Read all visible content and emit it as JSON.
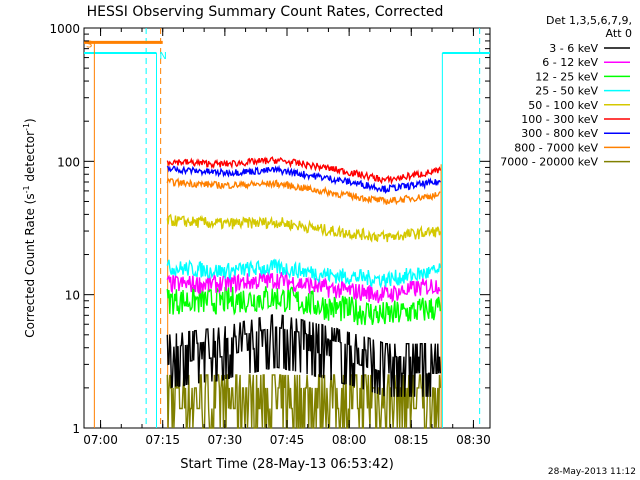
{
  "chart_data": {
    "type": "line",
    "title": "HESSI Observing Summary Count Rates, Corrected",
    "xlabel": "Start Time (28-May-13 06:53:42)",
    "ylabel_main": "Corrected Count Rate (s",
    "ylabel_sup1": "-1",
    "ylabel_mid": " detector",
    "ylabel_sup2": "-1",
    "ylabel_end": ")",
    "footer_date": "28-May-2013 11:12",
    "yscale": "log",
    "ylim": [
      1,
      1000
    ],
    "xlim_minutes": [
      -4,
      94
    ],
    "x_ticks": [
      {
        "label": "07:00",
        "minutes": 0
      },
      {
        "label": "07:15",
        "minutes": 15
      },
      {
        "label": "07:30",
        "minutes": 30
      },
      {
        "label": "07:45",
        "minutes": 45
      },
      {
        "label": "08:00",
        "minutes": 60
      },
      {
        "label": "08:15",
        "minutes": 75
      },
      {
        "label": "08:30",
        "minutes": 90
      }
    ],
    "y_ticks": [
      {
        "label": "1",
        "value": 1
      },
      {
        "label": "10",
        "value": 10
      },
      {
        "label": "100",
        "value": 100
      },
      {
        "label": "1000",
        "value": 1000
      }
    ],
    "legend_header": [
      "Det 1,3,5,6,7,9,",
      "Att 0"
    ],
    "legend_position": "right",
    "series": [
      {
        "name": "3 - 6 keV",
        "color": "#000000",
        "start": [
          3.5,
          4.0,
          5.0,
          4.0,
          3.0,
          3.0
        ],
        "end": [
          3.0,
          3.5,
          3.0,
          2.5,
          3.0,
          3.5
        ],
        "noise": 0.25
      },
      {
        "name": "6 - 12 keV",
        "color": "#ff00ff",
        "start": [
          12,
          12,
          13,
          11,
          10,
          12
        ],
        "end": [
          11,
          12,
          13,
          11,
          10,
          12
        ],
        "noise": 0.08
      },
      {
        "name": "12 - 25 keV",
        "color": "#00ff00",
        "start": [
          9,
          9,
          9.5,
          8,
          7,
          8
        ],
        "end": [
          9,
          9,
          9.5,
          8,
          7,
          8
        ],
        "noise": 0.12
      },
      {
        "name": "25 - 50 keV",
        "color": "#00ffff",
        "start": [
          16,
          15,
          16,
          14,
          13,
          15
        ],
        "end": [
          16,
          15,
          16,
          14,
          13,
          15
        ],
        "noise": 0.07
      },
      {
        "name": "50 - 100 keV",
        "color": "#d4c800",
        "start": [
          36,
          34,
          35,
          30,
          27,
          30
        ],
        "end": [
          36,
          34,
          35,
          30,
          27,
          32
        ],
        "noise": 0.05
      },
      {
        "name": "100 - 300 keV",
        "color": "#ff0000",
        "start": [
          100,
          95,
          102,
          88,
          72,
          85
        ],
        "end": [
          100,
          95,
          102,
          88,
          72,
          85
        ],
        "noise": 0.03
      },
      {
        "name": "300 - 800 keV",
        "color": "#0000ff",
        "start": [
          88,
          82,
          86,
          74,
          62,
          70
        ],
        "end": [
          88,
          82,
          86,
          74,
          62,
          70
        ],
        "noise": 0.03
      },
      {
        "name": "800 - 7000 keV",
        "color": "#ff8000",
        "start": [
          70,
          66,
          68,
          58,
          50,
          56
        ],
        "end": [
          70,
          66,
          68,
          58,
          50,
          56
        ],
        "noise": 0.03
      },
      {
        "name": "7000 - 20000 keV",
        "color": "#808000",
        "start": [
          1.8,
          2.0,
          2.0,
          1.5,
          1.8,
          2.2
        ],
        "end": [
          1.8,
          2.0,
          2.0,
          1.5,
          1.8,
          2.2
        ],
        "noise": 0.3
      }
    ],
    "data_window_minutes": [
      16.1,
      82.0
    ],
    "flags": [
      {
        "label": "S",
        "color": "#ff8000"
      },
      {
        "label": "N",
        "color": "#00ffff"
      }
    ]
  }
}
